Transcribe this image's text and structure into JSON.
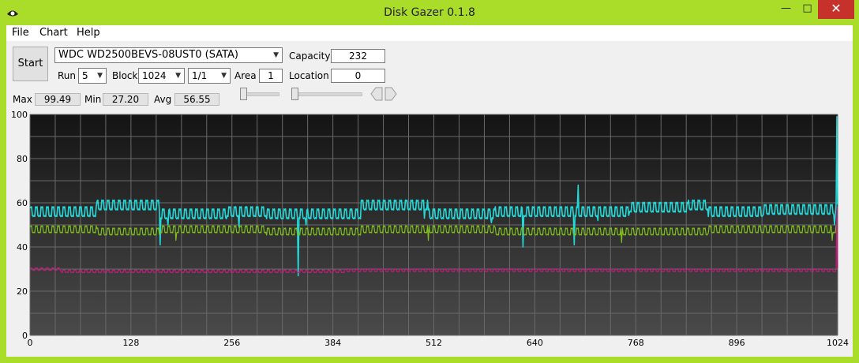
{
  "window": {
    "title": "Disk Gazer 0.1.8",
    "minimize": "—",
    "maximize": "□",
    "close": "✕"
  },
  "menu": [
    "File",
    "Chart",
    "Help"
  ],
  "controls": {
    "start": "Start",
    "drive": "WDC WD2500BEVS-08UST0 (SATA)",
    "capacity_label": "Capacity",
    "capacity": "232",
    "run_label": "Run",
    "run": "5",
    "block_label": "Block",
    "block": "1024",
    "ratio": "1/1",
    "area_label": "Area",
    "area": "1",
    "location_label": "Location",
    "location": "0"
  },
  "stats": {
    "max_label": "Max",
    "max": "99.49",
    "min_label": "Min",
    "min": "27.20",
    "avg_label": "Avg",
    "avg": "56.55"
  },
  "colors": {
    "frame": "#aadc2a",
    "cyan": "#22d8d8",
    "green": "#7fbf1a",
    "magenta": "#c41c7e",
    "chart_top": "#141414",
    "chart_bottom": "#4a4a4a"
  },
  "chart_data": {
    "type": "line",
    "xlim": [
      0,
      1024
    ],
    "ylim": [
      0,
      100
    ],
    "x_ticks": [
      "0",
      "128",
      "256",
      "384",
      "512",
      "640",
      "768",
      "896",
      "1024"
    ],
    "y_ticks": [
      "0",
      "20",
      "40",
      "60",
      "80",
      "100"
    ],
    "grid": true,
    "series": [
      {
        "color": "cyan",
        "base": [
          [
            0,
            56
          ],
          [
            85,
            59
          ],
          [
            165,
            55
          ],
          [
            250,
            56
          ],
          [
            300,
            55
          ],
          [
            420,
            59
          ],
          [
            505,
            55
          ],
          [
            590,
            56
          ],
          [
            660,
            56
          ],
          [
            760,
            58
          ],
          [
            835,
            59
          ],
          [
            860,
            56
          ],
          [
            930,
            57
          ],
          [
            1024,
            57
          ]
        ],
        "spikes": [
          [
            165,
            41
          ],
          [
            175,
            50
          ],
          [
            265,
            49
          ],
          [
            320,
            53
          ],
          [
            340,
            27
          ],
          [
            350,
            50
          ],
          [
            500,
            53
          ],
          [
            585,
            51
          ],
          [
            625,
            40
          ],
          [
            690,
            41
          ],
          [
            695,
            68
          ],
          [
            720,
            52
          ],
          [
            1020,
            50
          ],
          [
            1023,
            99
          ]
        ]
      },
      {
        "color": "green",
        "base": [
          [
            0,
            48
          ],
          [
            85,
            47
          ],
          [
            165,
            48
          ],
          [
            300,
            47
          ],
          [
            420,
            48
          ],
          [
            590,
            47
          ],
          [
            700,
            47
          ],
          [
            860,
            48
          ],
          [
            1024,
            48
          ]
        ],
        "spikes": [
          [
            185,
            43
          ],
          [
            505,
            43
          ],
          [
            750,
            42
          ],
          [
            1017,
            43
          ]
        ]
      },
      {
        "color": "magenta",
        "base": [
          [
            0,
            30
          ],
          [
            40,
            29
          ],
          [
            400,
            29.5
          ],
          [
            1024,
            30
          ]
        ],
        "spikes": [
          [
            1023,
            58
          ]
        ]
      }
    ]
  }
}
